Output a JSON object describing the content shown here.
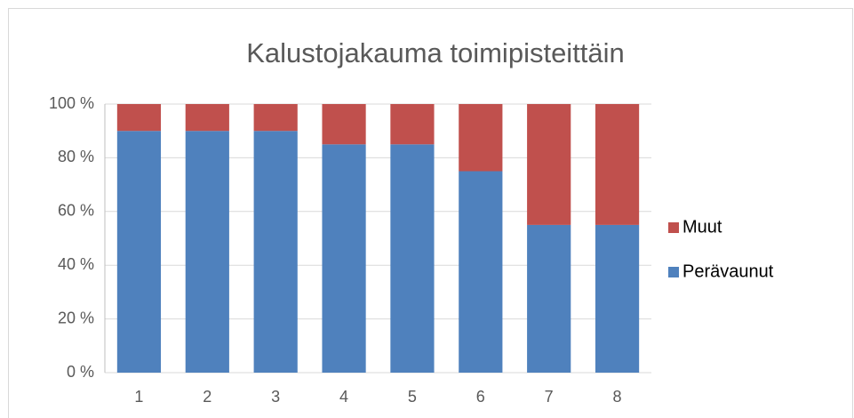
{
  "chart_data": {
    "type": "bar",
    "stacked": true,
    "title": "Kalustojakauma toimipisteittäin",
    "categories": [
      "1",
      "2",
      "3",
      "4",
      "5",
      "6",
      "7",
      "8"
    ],
    "series": [
      {
        "name": "Perävaunut",
        "color": "#4f81bd",
        "values": [
          90,
          90,
          90,
          85,
          85,
          75,
          55,
          55
        ]
      },
      {
        "name": "Muut",
        "color": "#c0504d",
        "values": [
          10,
          10,
          10,
          15,
          15,
          25,
          45,
          45
        ]
      }
    ],
    "ylim": [
      0,
      100
    ],
    "yticks": [
      {
        "value": 0,
        "label": "0 %"
      },
      {
        "value": 20,
        "label": "20 %"
      },
      {
        "value": 40,
        "label": "40 %"
      },
      {
        "value": 60,
        "label": "60 %"
      },
      {
        "value": 80,
        "label": "80 %"
      },
      {
        "value": 100,
        "label": "100 %"
      }
    ],
    "grid": true,
    "legend": "right"
  }
}
